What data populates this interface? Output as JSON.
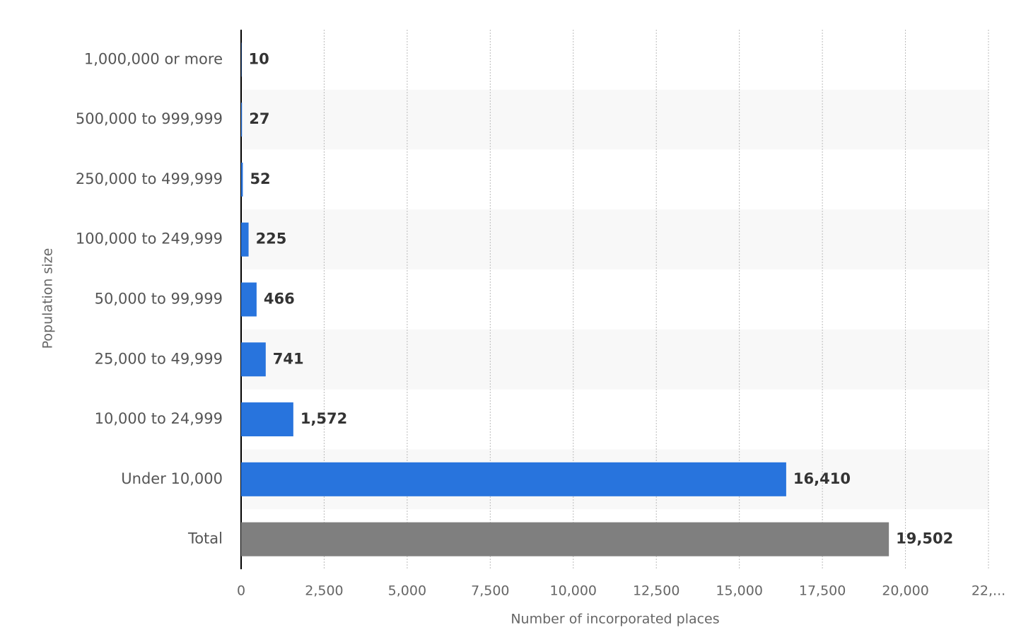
{
  "chart_data": {
    "type": "bar",
    "orientation": "horizontal",
    "categories": [
      "1,000,000 or more",
      "500,000 to 999,999",
      "250,000 to 499,999",
      "100,000 to 249,999",
      "50,000 to 99,999",
      "25,000 to 49,999",
      "10,000 to 24,999",
      "Under 10,000",
      "Total"
    ],
    "values": [
      10,
      27,
      52,
      225,
      466,
      741,
      1572,
      16410,
      19502
    ],
    "value_labels": [
      "10",
      "27",
      "52",
      "225",
      "466",
      "741",
      "1,572",
      "16,410",
      "19,502"
    ],
    "colors": [
      "#2874dd",
      "#2874dd",
      "#2874dd",
      "#2874dd",
      "#2874dd",
      "#2874dd",
      "#2874dd",
      "#2874dd",
      "#7f7f7f"
    ],
    "xlabel": "Number of incorporated places",
    "ylabel": "Population size",
    "xlim": [
      0,
      22500
    ],
    "xticks": [
      0,
      {
        "value": 2500,
        "label": "2,500"
      },
      {
        "value": 5000,
        "label": "5,000"
      },
      {
        "value": 7500,
        "label": "7,500"
      },
      {
        "value": 10000,
        "label": "10,000"
      },
      {
        "value": 12500,
        "label": "12,500"
      },
      {
        "value": 15000,
        "label": "15,000"
      },
      {
        "value": 17500,
        "label": "17,500"
      },
      {
        "value": 20000,
        "label": "20,000"
      },
      {
        "value": 22500,
        "label": "22,..."
      }
    ],
    "grid": true
  }
}
